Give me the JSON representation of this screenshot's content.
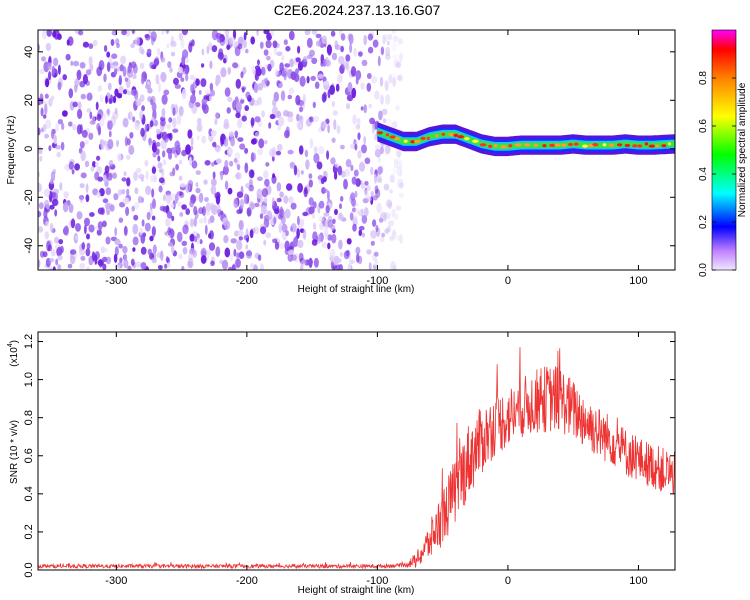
{
  "title": "C2E6.2024.237.13.16.G07",
  "chart_data": [
    {
      "type": "heatmap",
      "name": "spectrogram",
      "xlabel": "Height of straight line (km)",
      "ylabel": "Frequency (Hz)",
      "xlim": [
        -360,
        128
      ],
      "ylim": [
        -50,
        49
      ],
      "xticks": [
        -300,
        -200,
        -100,
        0,
        100
      ],
      "yticks": [
        -40,
        -20,
        0,
        20,
        40
      ],
      "noise_region_x": [
        -360,
        -90
      ],
      "ridge": {
        "x": [
          -100,
          -90,
          -80,
          -70,
          -60,
          -50,
          -40,
          -30,
          -20,
          -10,
          0,
          10,
          20,
          30,
          40,
          50,
          60,
          70,
          80,
          90,
          100,
          110,
          128
        ],
        "y": [
          7,
          5,
          3,
          3,
          5,
          6,
          6,
          4,
          2,
          1,
          1,
          1.5,
          1.5,
          1.5,
          1.5,
          2,
          1.5,
          1.5,
          1.5,
          2,
          1.5,
          1.5,
          2
        ]
      },
      "colorbar": {
        "label": "Normalized spectral amplitude",
        "range": [
          0.0,
          1.0
        ],
        "ticks": [
          "0.0",
          "0.2",
          "0.4",
          "0.6",
          "0.8"
        ]
      }
    },
    {
      "type": "line",
      "name": "snr",
      "xlabel": "Height of straight line (km)",
      "ylabel": "SNR (10 * v/v)",
      "yscale_label": "(x10",
      "yscale_exp": "4",
      "xlim": [
        -360,
        128
      ],
      "ylim": [
        0,
        1.25
      ],
      "xticks": [
        -300,
        -200,
        -100,
        0,
        100
      ],
      "yticks": [
        "0.0",
        "0.2",
        "0.4",
        "0.6",
        "0.8",
        "1.0",
        "1.2"
      ],
      "series": [
        {
          "name": "SNR",
          "color": "#ee3333",
          "x": [
            -360,
            -200,
            -100,
            -80,
            -70,
            -60,
            -50,
            -40,
            -30,
            -20,
            -10,
            0,
            10,
            20,
            30,
            40,
            50,
            60,
            70,
            80,
            90,
            100,
            110,
            120,
            128
          ],
          "values": [
            0.02,
            0.02,
            0.02,
            0.025,
            0.05,
            0.15,
            0.28,
            0.42,
            0.58,
            0.68,
            0.76,
            0.8,
            0.85,
            0.88,
            0.9,
            0.9,
            0.84,
            0.78,
            0.72,
            0.68,
            0.62,
            0.58,
            0.55,
            0.52,
            0.5
          ],
          "spread": [
            0.01,
            0.01,
            0.01,
            0.01,
            0.04,
            0.1,
            0.15,
            0.18,
            0.2,
            0.18,
            0.16,
            0.16,
            0.16,
            0.17,
            0.18,
            0.18,
            0.16,
            0.15,
            0.14,
            0.13,
            0.13,
            0.12,
            0.12,
            0.12,
            0.12
          ]
        }
      ]
    }
  ]
}
